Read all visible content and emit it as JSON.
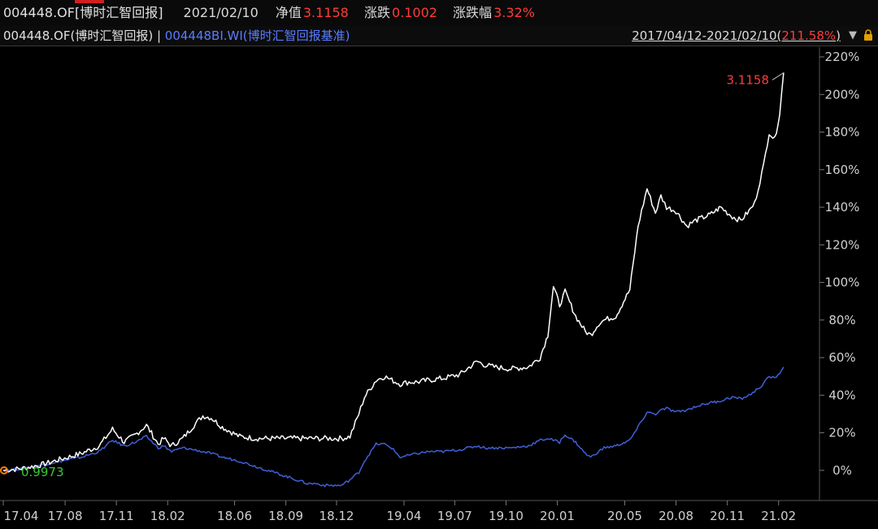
{
  "header": {
    "code": "004448.OF[博时汇智回报]",
    "date": "2021/02/10",
    "nav_label": "净值",
    "nav_value": "3.1158",
    "change_label": "涨跌",
    "change_value": "0.1002",
    "change_pct_label": "涨跌幅",
    "change_pct_value": "3.32%"
  },
  "subheader": {
    "fund": "004448.OF(博时汇智回报)",
    "separator": "|",
    "benchmark": "004448BI.WI(博时汇智回报基准)",
    "range_prefix": "2017/04/12-2021/02/10(",
    "range_pct": "211.58%",
    "range_suffix": ")",
    "dropdown_icon": "triangle-down-icon",
    "lock_icon": "lock-icon"
  },
  "colors": {
    "fund_line": "#ffffff",
    "benchmark_line": "#3f5fd8",
    "red": "#ff3b3b",
    "green": "#33cc33",
    "start_marker": "#ff7a00"
  },
  "chart_data": {
    "type": "line",
    "x": [
      "2017-04-12",
      "2017-05-15",
      "2017-06-20",
      "2017-07-25",
      "2017-08-30",
      "2017-10-01",
      "2017-10-25",
      "2017-11-15",
      "2017-12-05",
      "2017-12-25",
      "2018-01-15",
      "2018-01-25",
      "2018-02-08",
      "2018-02-28",
      "2018-03-20",
      "2018-04-05",
      "2018-04-20",
      "2018-05-10",
      "2018-06-10",
      "2018-07-10",
      "2018-08-10",
      "2018-09-10",
      "2018-10-10",
      "2018-10-25",
      "2018-11-10",
      "2018-12-10",
      "2018-12-25",
      "2019-01-10",
      "2019-01-20",
      "2019-02-10",
      "2019-02-25",
      "2019-03-10",
      "2019-03-25",
      "2019-04-10",
      "2019-04-25",
      "2019-05-15",
      "2019-06-10",
      "2019-07-10",
      "2019-08-10",
      "2019-08-25",
      "2019-09-10",
      "2019-10-10",
      "2019-11-10",
      "2019-12-01",
      "2019-12-15",
      "2019-12-25",
      "2020-01-05",
      "2020-01-15",
      "2020-02-03",
      "2020-02-20",
      "2020-03-01",
      "2020-03-15",
      "2020-03-25",
      "2020-04-15",
      "2020-05-10",
      "2020-05-25",
      "2020-06-10",
      "2020-06-25",
      "2020-07-05",
      "2020-07-15",
      "2020-08-01",
      "2020-08-20",
      "2020-09-05",
      "2020-10-01",
      "2020-10-20",
      "2020-11-10",
      "2020-11-25",
      "2020-12-10",
      "2020-12-20",
      "2021-01-05",
      "2021-01-15",
      "2021-01-25",
      "2021-02-03",
      "2021-02-10"
    ],
    "series": [
      {
        "name": "004448.OF(博时汇智回报)",
        "values": [
          0,
          1,
          3,
          6,
          9,
          13,
          22,
          15,
          19,
          24,
          14,
          17,
          13,
          17,
          24,
          29,
          28,
          23,
          18,
          17,
          17,
          17,
          17,
          17,
          17,
          17,
          18,
          30,
          39,
          48,
          50,
          48,
          46,
          47,
          47,
          48,
          49,
          51,
          58,
          56,
          55,
          54,
          55,
          60,
          72,
          98,
          88,
          95,
          82,
          74,
          72,
          78,
          80,
          82,
          96,
          130,
          150,
          137,
          146,
          140,
          138,
          130,
          133,
          136,
          140,
          135,
          133,
          138,
          142,
          162,
          180,
          176,
          190,
          211.6
        ]
      },
      {
        "name": "004448BI.WI(博时汇智回报基准)",
        "values": [
          0,
          1,
          3,
          5,
          7,
          10,
          16,
          13,
          15,
          18,
          12,
          13,
          10,
          12,
          11,
          10,
          9,
          7,
          5,
          2,
          -1,
          -4,
          -7,
          -7,
          -8,
          -8,
          -5,
          -1,
          5,
          14,
          14,
          12,
          7,
          8,
          9,
          10,
          10,
          11,
          13,
          12,
          12,
          12,
          13,
          16,
          17,
          16,
          15,
          19,
          15,
          9,
          7,
          10,
          12,
          13,
          16,
          23,
          31,
          30,
          32,
          33,
          31,
          32,
          34,
          36,
          37,
          39,
          38,
          40,
          42,
          46,
          50,
          49,
          52,
          55
        ]
      }
    ],
    "start_label": "0.9973",
    "end_label": "3.1158",
    "ylim": [
      -10,
      220
    ],
    "yticks": [
      "220%",
      "200%",
      "180%",
      "160%",
      "140%",
      "120%",
      "100%",
      "80%",
      "60%",
      "40%",
      "20%",
      "0%"
    ],
    "ytick_values": [
      220,
      200,
      180,
      160,
      140,
      120,
      100,
      80,
      60,
      40,
      20,
      0
    ],
    "xticks": [
      "17.04",
      "17.08",
      "17.11",
      "18.02",
      "18.06",
      "18.09",
      "18.12",
      "19.04",
      "19.07",
      "19.10",
      "20.01",
      "20.05",
      "20.08",
      "20.11",
      "21.02"
    ],
    "xtick_dates": [
      "2017-04-12",
      "2017-08-01",
      "2017-11-01",
      "2018-02-01",
      "2018-06-01",
      "2018-09-01",
      "2018-12-01",
      "2019-04-01",
      "2019-07-01",
      "2019-10-01",
      "2020-01-01",
      "2020-05-01",
      "2020-08-01",
      "2020-11-01",
      "2021-02-01"
    ],
    "xlim": [
      "2017-04-12",
      "2021-02-16"
    ],
    "grid": false
  }
}
